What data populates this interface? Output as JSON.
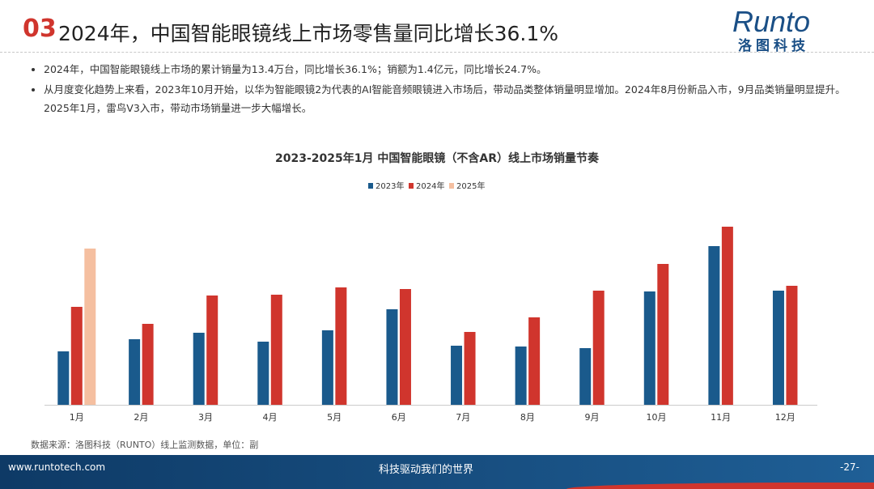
{
  "header": {
    "number": "03",
    "title": "2024年，中国智能眼镜线上市场零售量同比增长36.1%",
    "logo_en": "Runto",
    "logo_cn": "洛图科技"
  },
  "bullets": [
    "2024年，中国智能眼镜线上市场的累计销量为13.4万台，同比增长36.1%；销额为1.4亿元，同比增长24.7%。",
    "从月度变化趋势上来看，2023年10月开始，以华为智能眼镜2为代表的AI智能音频眼镜进入市场后，带动品类整体销量明显增加。2024年8月份新品入市，9月品类销量明显提升。2025年1月，雷鸟V3入市，带动市场销量进一步大幅增长。"
  ],
  "chart_data": {
    "type": "bar",
    "title": "2023-2025年1月  中国智能眼镜（不含AR）线上市场销量节奏",
    "categories": [
      "1月",
      "2月",
      "3月",
      "4月",
      "5月",
      "6月",
      "7月",
      "8月",
      "9月",
      "10月",
      "11月",
      "12月"
    ],
    "series": [
      {
        "name": "2023年",
        "color": "#1a5a8c",
        "values": [
          66,
          81,
          89,
          78,
          92,
          118,
          73,
          72,
          70,
          140,
          196,
          141
        ]
      },
      {
        "name": "2024年",
        "color": "#d0352d",
        "values": [
          121,
          100,
          135,
          136,
          145,
          143,
          90,
          108,
          141,
          174,
          220,
          147
        ]
      },
      {
        "name": "2025年",
        "color": "#f5bfa0",
        "values": [
          193,
          null,
          null,
          null,
          null,
          null,
          null,
          null,
          null,
          null,
          null,
          null
        ]
      }
    ],
    "ylim": [
      0,
      220
    ],
    "legend": "top"
  },
  "footer": {
    "source": "数据来源：洛图科技（RUNTO）线上监测数据，单位：副",
    "url": "www.runtotech.com",
    "slogan": "科技驱动我们的世界",
    "page": "-27-"
  }
}
